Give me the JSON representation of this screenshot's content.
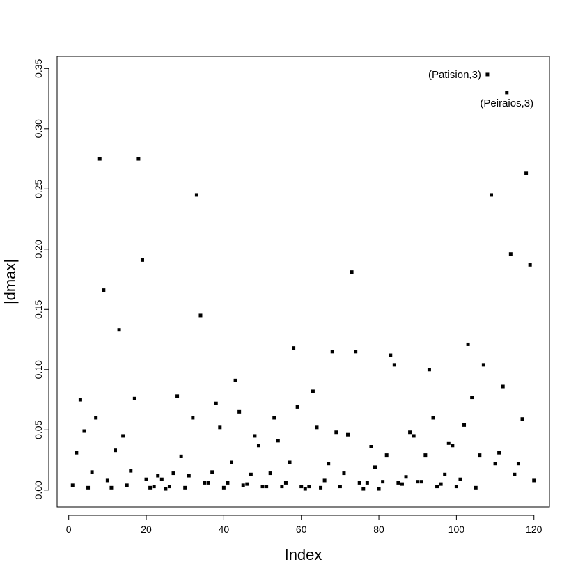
{
  "chart_data": {
    "type": "scatter",
    "title": "",
    "xlabel": "Index",
    "ylabel": "|dmax|",
    "xlim": [
      -3,
      124
    ],
    "ylim": [
      -0.014,
      0.36
    ],
    "x_ticks": [
      0,
      20,
      40,
      60,
      80,
      100,
      120
    ],
    "x_tick_labels": [
      "0",
      "20",
      "40",
      "60",
      "80",
      "100",
      "120"
    ],
    "y_ticks": [
      0.0,
      0.05,
      0.1,
      0.15,
      0.2,
      0.25,
      0.3,
      0.35
    ],
    "y_tick_labels": [
      "0.00",
      "0.05",
      "0.10",
      "0.15",
      "0.20",
      "0.25",
      "0.30",
      "0.35"
    ],
    "grid": false,
    "legend": "none",
    "marker": "square",
    "color": "#000000",
    "series": [
      {
        "x": [
          1,
          2,
          3,
          4,
          5,
          6,
          7,
          8,
          9,
          10,
          11,
          12,
          13,
          14,
          15,
          16,
          17,
          18,
          19,
          20,
          21,
          22,
          23,
          24,
          25,
          26,
          27,
          28,
          29,
          30,
          31,
          32,
          33,
          34,
          35,
          36,
          37,
          38,
          39,
          40,
          41,
          42,
          43,
          44,
          45,
          46,
          47,
          48,
          49,
          50,
          51,
          52,
          53,
          54,
          55,
          56,
          57,
          58,
          59,
          60,
          61,
          62,
          63,
          64,
          65,
          66,
          67,
          68,
          69,
          70,
          71,
          72,
          73,
          74,
          75,
          76,
          77,
          78,
          79,
          80,
          81,
          82,
          83,
          84,
          85,
          86,
          87,
          88,
          89,
          90,
          91,
          92,
          93,
          94,
          95,
          96,
          97,
          98,
          99,
          100,
          101,
          102,
          103,
          104,
          105,
          106,
          107,
          108,
          109,
          110,
          111,
          112,
          113,
          114,
          115,
          116,
          117,
          118,
          119,
          120
        ],
        "y": [
          0.004,
          0.031,
          0.075,
          0.049,
          0.002,
          0.015,
          0.06,
          0.275,
          0.166,
          0.008,
          0.002,
          0.033,
          0.133,
          0.045,
          0.004,
          0.016,
          0.076,
          0.275,
          0.191,
          0.009,
          0.002,
          0.003,
          0.012,
          0.009,
          0.001,
          0.003,
          0.014,
          0.078,
          0.028,
          0.002,
          0.012,
          0.06,
          0.245,
          0.145,
          0.006,
          0.006,
          0.015,
          0.072,
          0.052,
          0.002,
          0.006,
          0.023,
          0.091,
          0.065,
          0.004,
          0.005,
          0.013,
          0.045,
          0.037,
          0.003,
          0.003,
          0.014,
          0.06,
          0.041,
          0.003,
          0.006,
          0.023,
          0.118,
          0.069,
          0.003,
          0.001,
          0.003,
          0.082,
          0.052,
          0.002,
          0.008,
          0.022,
          0.115,
          0.048,
          0.003,
          0.014,
          0.046,
          0.181,
          0.115,
          0.006,
          0.001,
          0.006,
          0.036,
          0.019,
          0.001,
          0.007,
          0.029,
          0.112,
          0.104,
          0.006,
          0.005,
          0.011,
          0.048,
          0.045,
          0.007,
          0.007,
          0.029,
          0.1,
          0.06,
          0.003,
          0.005,
          0.013,
          0.039,
          0.037,
          0.003,
          0.009,
          0.054,
          0.121,
          0.077,
          0.002,
          0.029,
          0.104,
          0.345,
          0.245,
          0.022,
          0.031,
          0.086,
          0.33,
          0.196,
          0.013,
          0.022,
          0.059,
          0.263,
          0.187,
          0.008
        ]
      }
    ],
    "annotations": [
      {
        "text": "(Patision,3)",
        "x": 108,
        "y": 0.345,
        "anchor": "end"
      },
      {
        "text": "(Peiraios,3)",
        "x": 113,
        "y": 0.33,
        "anchor": "below"
      }
    ]
  }
}
